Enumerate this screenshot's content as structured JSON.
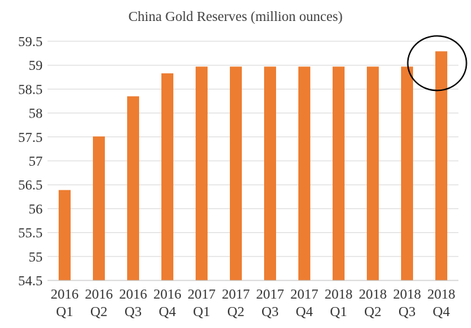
{
  "chart_data": {
    "type": "bar",
    "title": "China Gold Reserves (million ounces)",
    "xlabel": "",
    "ylabel": "",
    "categories": [
      [
        "2016",
        "Q1"
      ],
      [
        "2016",
        "Q2"
      ],
      [
        "2016",
        "Q3"
      ],
      [
        "2016",
        "Q4"
      ],
      [
        "2017",
        "Q1"
      ],
      [
        "2017",
        "Q2"
      ],
      [
        "2017",
        "Q3"
      ],
      [
        "2017",
        "Q4"
      ],
      [
        "2018",
        "Q1"
      ],
      [
        "2018",
        "Q2"
      ],
      [
        "2018",
        "Q3"
      ],
      [
        "2018",
        "Q4"
      ]
    ],
    "values": [
      56.39,
      57.51,
      58.35,
      58.83,
      58.97,
      58.97,
      58.97,
      58.97,
      58.97,
      58.97,
      58.97,
      59.29
    ],
    "ylim": [
      54.5,
      59.5
    ],
    "yticks": [
      "54.5",
      "55",
      "55.5",
      "56",
      "56.5",
      "57",
      "57.5",
      "58",
      "58.5",
      "59",
      "59.5"
    ],
    "grid": true,
    "legend": "none",
    "bar_color": "#ed7d31",
    "annotation": {
      "type": "circle",
      "category_index": 11,
      "stroke": "#000000"
    }
  }
}
